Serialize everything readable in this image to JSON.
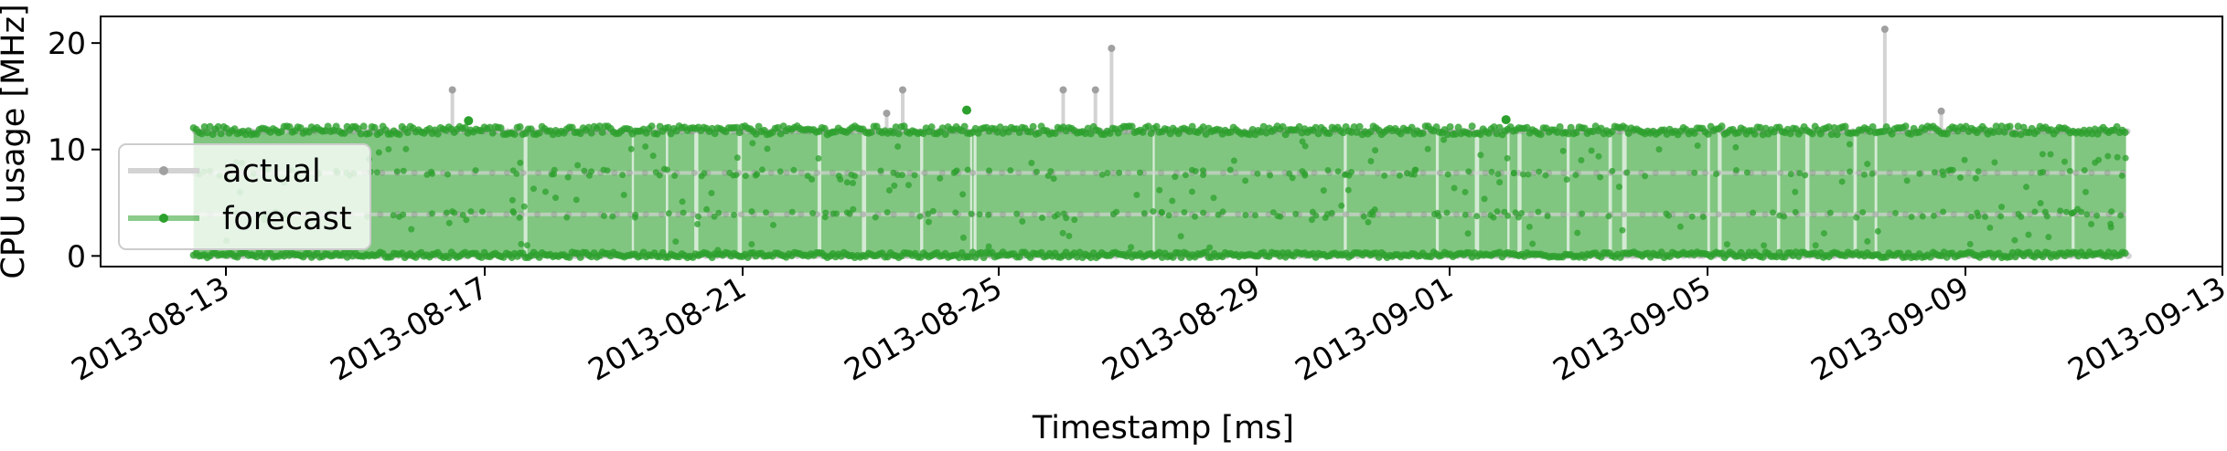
{
  "chart_data": {
    "type": "scatter",
    "title": "",
    "xlabel": "Timestamp [ms]",
    "ylabel": "CPU usage [MHz]",
    "x_is_date": true,
    "xlim": [
      "2013-08-12",
      "2013-09-13"
    ],
    "ylim": [
      -1,
      22.5
    ],
    "grid": false,
    "legend_position": "lower-left",
    "x_tick_labels": [
      "2013-08-13",
      "2013-08-17",
      "2013-08-21",
      "2013-08-25",
      "2013-08-29",
      "2013-09-01",
      "2013-09-05",
      "2013-09-09",
      "2013-09-13"
    ],
    "y_ticks": [
      0,
      10,
      20
    ],
    "y_tick_labels": [
      "0",
      "10",
      "20"
    ],
    "series": [
      {
        "name": "actual",
        "color": "#808080",
        "line_color": "#d3d3d3",
        "levels": [
          0,
          3.9,
          7.8,
          11.7
        ],
        "range": [
          "2013-08-12T12:00",
          "2013-09-11T12:00"
        ],
        "spikes": [
          {
            "x": "2013-08-16T12:00",
            "y": 15.6
          },
          {
            "x": "2013-08-23T06:00",
            "y": 13.4
          },
          {
            "x": "2013-08-23T12:00",
            "y": 15.6
          },
          {
            "x": "2013-08-26T00:00",
            "y": 15.6
          },
          {
            "x": "2013-08-26T12:00",
            "y": 15.6
          },
          {
            "x": "2013-08-26T18:00",
            "y": 19.5
          },
          {
            "x": "2013-09-07T18:00",
            "y": 21.3
          },
          {
            "x": "2013-09-08T15:00",
            "y": 13.6
          }
        ]
      },
      {
        "name": "forecast",
        "color": "#2ca02c",
        "band": [
          0,
          11.8
        ],
        "range": [
          "2013-08-12T12:00",
          "2013-09-11T12:00"
        ],
        "spikes": [
          {
            "x": "2013-08-16T18:00",
            "y": 12.7
          },
          {
            "x": "2013-08-24T12:00",
            "y": 13.7
          },
          {
            "x": "2013-09-01T21:00",
            "y": 12.8
          }
        ]
      }
    ]
  }
}
